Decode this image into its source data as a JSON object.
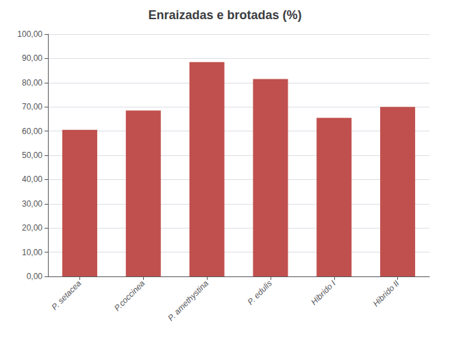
{
  "chart_data": {
    "type": "bar",
    "title": "Enraizadas e brotadas (%)",
    "categories": [
      "P. setacea",
      "P.coccinea",
      "P. amethystina",
      "P. edulis",
      "Hibrido I",
      "Hibrido II"
    ],
    "values": [
      60.5,
      68.5,
      88.5,
      81.5,
      65.5,
      70.0
    ],
    "color": "#c0504d",
    "ylim": [
      0,
      100
    ],
    "yticks": [
      {
        "value": 0,
        "label": "0,00"
      },
      {
        "value": 10,
        "label": "10,00"
      },
      {
        "value": 20,
        "label": "20,00"
      },
      {
        "value": 30,
        "label": "30,00"
      },
      {
        "value": 40,
        "label": "40,00"
      },
      {
        "value": 50,
        "label": "50,00"
      },
      {
        "value": 60,
        "label": "60,00"
      },
      {
        "value": 70,
        "label": "70,00"
      },
      {
        "value": 80,
        "label": "80,00"
      },
      {
        "value": 90,
        "label": "90,00"
      },
      {
        "value": 100,
        "label": "100,00"
      }
    ],
    "grid": true
  }
}
